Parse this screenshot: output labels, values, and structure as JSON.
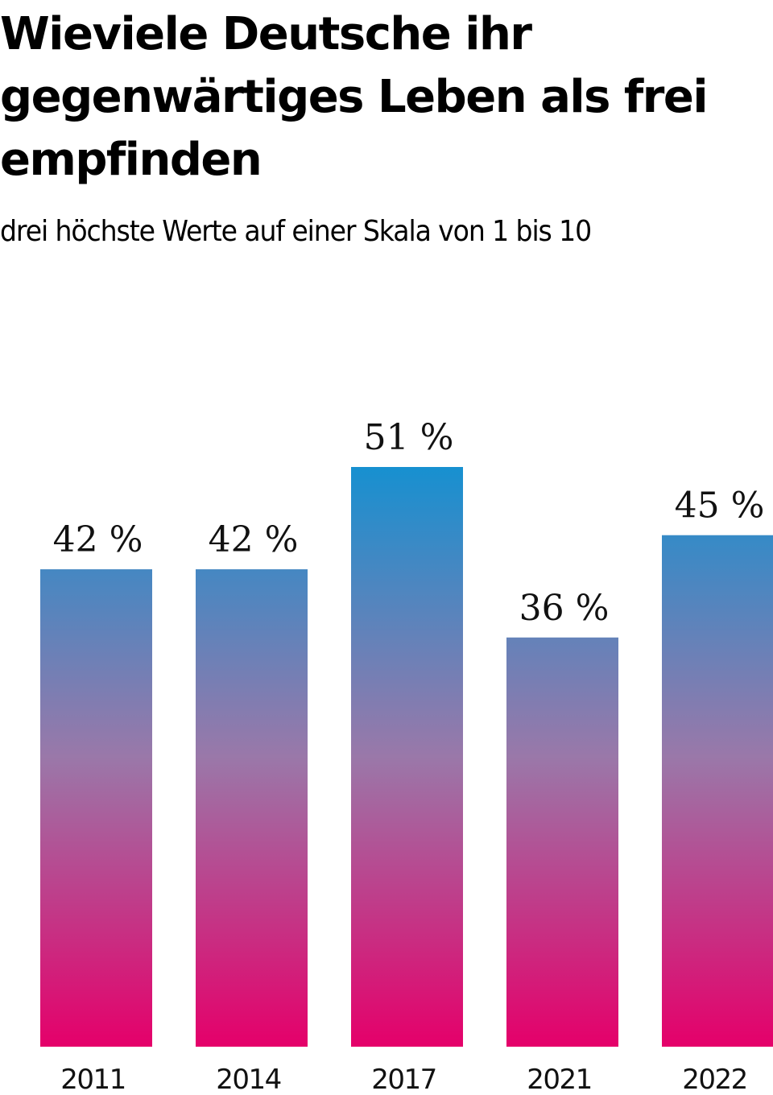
{
  "header": {
    "title": "Wieviele Deutsche ihr gegenwärtiges Leben als frei empfinden",
    "subtitle": "drei höchste Werte auf einer Skala von 1 bis 10"
  },
  "colors": {
    "bar_top": "#1790d0",
    "bar_bottom": "#e5006a",
    "text": "#111111"
  },
  "chart_data": {
    "type": "bar",
    "title": "Wieviele Deutsche ihr gegenwärtiges Leben als frei empfinden",
    "subtitle": "drei höchste Werte auf einer Skala von 1 bis 10",
    "categories": [
      "2011",
      "2014",
      "2017",
      "2021",
      "2022"
    ],
    "values": [
      42,
      42,
      51,
      36,
      45
    ],
    "value_labels": [
      "42 %",
      "42 %",
      "51 %",
      "36 %",
      "45 %"
    ],
    "unit": "%",
    "xlabel": "",
    "ylabel": "",
    "ylim": [
      0,
      51
    ],
    "grid": false,
    "legend": "none"
  }
}
